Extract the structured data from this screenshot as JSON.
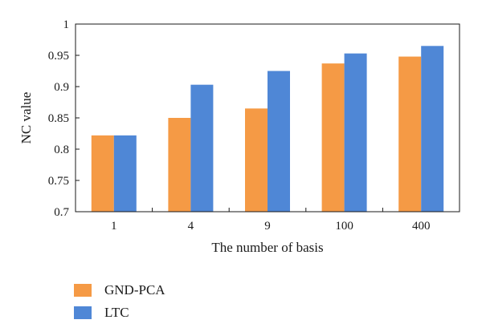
{
  "chart_data": {
    "type": "bar",
    "categories": [
      "1",
      "4",
      "9",
      "100",
      "400"
    ],
    "series": [
      {
        "name": "GND-PCA",
        "color": "#f59a45",
        "values": [
          0.822,
          0.85,
          0.865,
          0.937,
          0.948
        ]
      },
      {
        "name": "LTC",
        "color": "#4f87d6",
        "values": [
          0.822,
          0.903,
          0.925,
          0.953,
          0.965
        ]
      }
    ],
    "xlabel": "The number of basis",
    "ylabel": "NC value",
    "ylim": [
      0.7,
      1.0
    ],
    "yticks": [
      "0.7",
      "0.75",
      "0.8",
      "0.85",
      "0.9",
      "0.95",
      "1"
    ],
    "grid": false,
    "legend_position": "bottom-left"
  }
}
